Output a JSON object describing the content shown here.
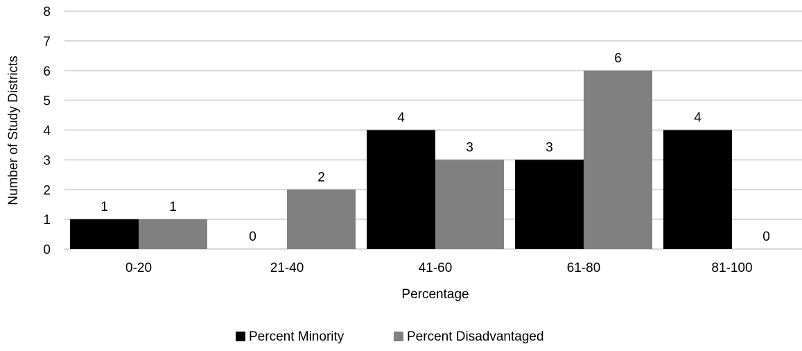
{
  "chart_data": {
    "type": "bar",
    "categories": [
      "0-20",
      "21-40",
      "41-60",
      "61-80",
      "81-100"
    ],
    "series": [
      {
        "name": "Percent Minority",
        "values": [
          1,
          0,
          4,
          3,
          4
        ],
        "color": "#000000"
      },
      {
        "name": "Percent Disadvantaged",
        "values": [
          1,
          2,
          3,
          6,
          0
        ],
        "color": "#808080"
      }
    ],
    "title": "",
    "xlabel": "Percentage",
    "ylabel": "Number of Study Districts",
    "ylim": [
      0,
      8
    ],
    "yticks": [
      0,
      1,
      2,
      3,
      4,
      5,
      6,
      7,
      8
    ],
    "grid": true,
    "gridline_color": "#d9d9d9",
    "data_labels": true,
    "legend_position": "bottom"
  }
}
